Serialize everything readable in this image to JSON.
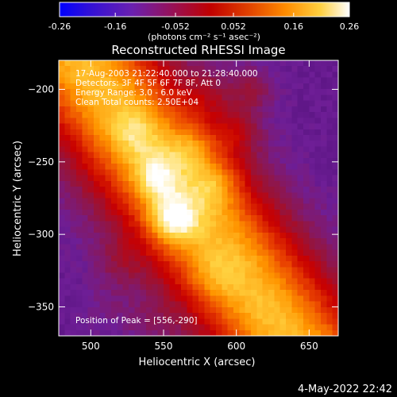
{
  "colorbar": {
    "ticks": [
      -0.26,
      -0.16,
      -0.052,
      0.052,
      0.16,
      0.26
    ],
    "tick_labels": [
      "-0.26",
      "-0.16",
      "-0.052",
      "0.052",
      "0.16",
      "0.26"
    ],
    "range": [
      -0.26,
      0.26
    ],
    "unit_label": "(photons cm⁻² s⁻¹ asec⁻²)"
  },
  "image_panel": {
    "lines": [
      "17-Aug-2003 21:22:40.000 to 21:28:40.000",
      "Detectors: 3F 4F 5F 6F 7F 8F, Att 0",
      "Energy Range: 3.0 - 6.0 keV",
      "Clean     Total counts: 2.50E+04"
    ],
    "peak_text": "Position of Peak = [556,-290]"
  },
  "footer": {
    "timestamp": "4-May-2022 22:42"
  },
  "chart_data": {
    "type": "heatmap",
    "title": "Reconstructed RHESSI Image",
    "xlabel": "Heliocentric X (arcsec)",
    "ylabel": "Heliocentric Y (arcsec)",
    "xlim": [
      478,
      670
    ],
    "ylim": [
      -370,
      -180
    ],
    "xticks": [
      500,
      550,
      600,
      650
    ],
    "yticks": [
      -200,
      -250,
      -300,
      -350
    ],
    "peak": {
      "x": 556,
      "y": -290
    },
    "colormap": "black-purple-red-orange-yellow-white",
    "emission_ridge": [
      {
        "x": 556,
        "y": -290,
        "value": 0.26
      },
      {
        "x": 545,
        "y": -260,
        "value": 0.19
      },
      {
        "x": 585,
        "y": -265,
        "value": 0.17
      },
      {
        "x": 570,
        "y": -240,
        "value": 0.16
      },
      {
        "x": 600,
        "y": -230,
        "value": 0.15
      },
      {
        "x": 610,
        "y": -200,
        "value": 0.14
      },
      {
        "x": 580,
        "y": -205,
        "value": 0.12
      },
      {
        "x": 530,
        "y": -230,
        "value": 0.13
      },
      {
        "x": 520,
        "y": -320,
        "value": 0.11
      },
      {
        "x": 585,
        "y": -330,
        "value": 0.11
      },
      {
        "x": 510,
        "y": -350,
        "value": 0.08
      },
      {
        "x": 540,
        "y": -360,
        "value": 0.09
      },
      {
        "x": 620,
        "y": -355,
        "value": 0.06
      },
      {
        "x": 640,
        "y": -240,
        "value": 0.05
      }
    ],
    "background_value": -0.1
  }
}
